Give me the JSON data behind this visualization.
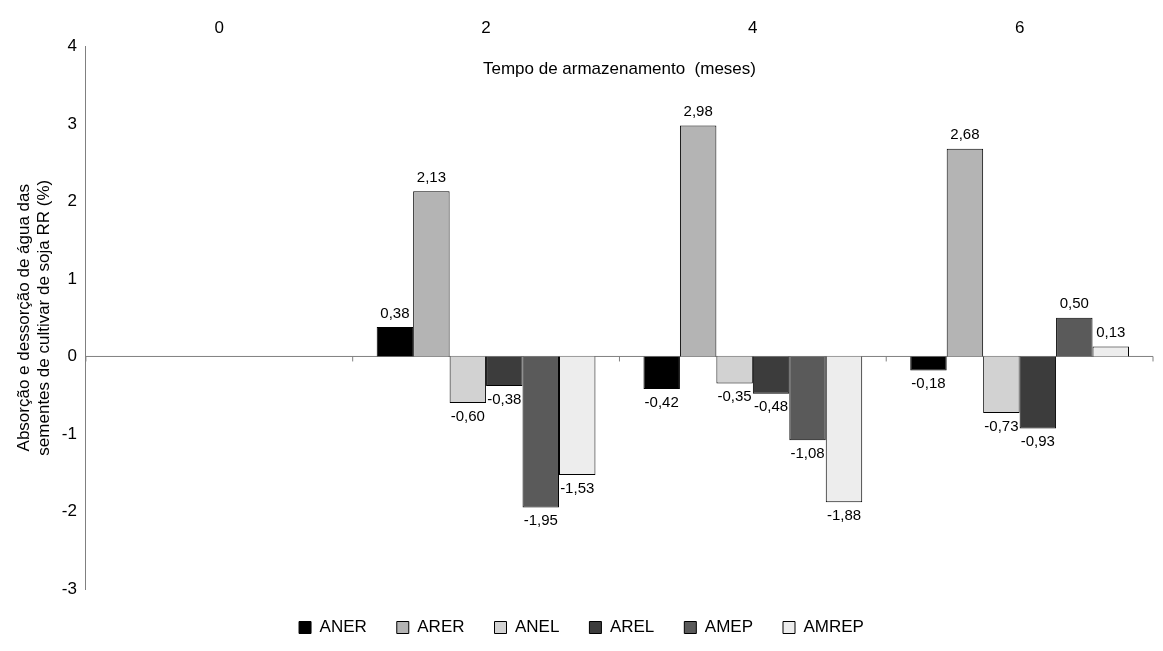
{
  "chart_data": {
    "type": "bar",
    "xlabel": "Tempo de armazenamento  (meses)",
    "ylabel": "Absorção e dessorção de água das sementes de cultivar de soja RR (%)",
    "categories": [
      "0",
      "2",
      "4",
      "6"
    ],
    "series": [
      {
        "name": "ANER",
        "color": "#000000",
        "values": [
          null,
          0.38,
          -0.42,
          -0.18
        ],
        "value_labels": [
          null,
          "0,38",
          "-0,42",
          "-0,18"
        ]
      },
      {
        "name": "ARER",
        "color": "#b4b4b4",
        "values": [
          null,
          2.13,
          2.98,
          2.68
        ],
        "value_labels": [
          null,
          "2,13",
          "2,98",
          "2,68"
        ]
      },
      {
        "name": "ANEL",
        "color": "#d2d2d2",
        "values": [
          null,
          -0.6,
          -0.35,
          -0.73
        ],
        "value_labels": [
          null,
          "-0,60",
          "-0,35",
          "-0,73"
        ]
      },
      {
        "name": "AREL",
        "color": "#3c3c3c",
        "values": [
          null,
          -0.38,
          -0.48,
          -0.93
        ],
        "value_labels": [
          null,
          "-0,38",
          "-0,48",
          "-0,93"
        ]
      },
      {
        "name": "AMEP",
        "color": "#5a5a5a",
        "values": [
          null,
          -1.95,
          -1.08,
          0.5
        ],
        "value_labels": [
          null,
          "-1,95",
          "-1,08",
          "0,50"
        ]
      },
      {
        "name": "AMREP",
        "color": "#ededed",
        "values": [
          null,
          -1.53,
          -1.88,
          0.13
        ],
        "value_labels": [
          null,
          "-1,53",
          "-1,88",
          "0,13"
        ]
      }
    ],
    "ylim": [
      -3,
      4
    ],
    "yticks": [
      -3,
      -2,
      -1,
      0,
      1,
      2,
      3,
      4
    ],
    "ref_lines": [
      {
        "axis": "y",
        "value": 0,
        "color": "#808080"
      }
    ],
    "grid": false,
    "legend": "bottom"
  }
}
